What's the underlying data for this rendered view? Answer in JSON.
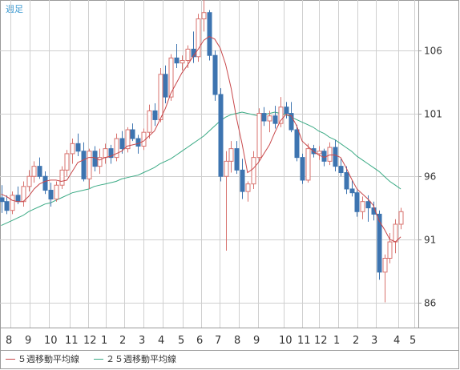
{
  "period_label": "週足",
  "legend": [
    {
      "label": "５週移動平均線",
      "color": "#c8474a"
    },
    {
      "label": "２５週移動平均線",
      "color": "#3aaa84"
    }
  ],
  "colors": {
    "up": "#d8736f",
    "down": "#3d74b0",
    "grid": "#cfcfcf",
    "axis": "#9a9a9a",
    "text": "#333333"
  },
  "chart_data": {
    "type": "candlestick",
    "y_ticks": [
      86,
      91,
      96,
      101,
      106
    ],
    "ylim": [
      84,
      110
    ],
    "x_tick_labels": [
      "8",
      "9",
      "10",
      "11",
      "12",
      "1",
      "2",
      "3",
      "4",
      "5",
      "6",
      "7",
      "8",
      "9",
      "10",
      "11",
      "12",
      "1",
      "2",
      "3",
      "4",
      "5"
    ],
    "grid": true,
    "candles": [
      [
        94.3,
        95.3,
        93.1,
        94.0
      ],
      [
        94.0,
        94.5,
        93.0,
        93.3
      ],
      [
        93.3,
        94.8,
        93.0,
        94.5
      ],
      [
        94.5,
        95.2,
        93.8,
        94.0
      ],
      [
        94.0,
        95.6,
        93.6,
        95.2
      ],
      [
        95.2,
        96.5,
        94.8,
        96.0
      ],
      [
        96.0,
        97.2,
        95.5,
        96.8
      ],
      [
        96.8,
        97.5,
        95.8,
        96.0
      ],
      [
        96.0,
        96.4,
        94.6,
        94.9
      ],
      [
        94.9,
        95.5,
        93.6,
        94.2
      ],
      [
        94.2,
        95.6,
        94.0,
        95.3
      ],
      [
        95.3,
        96.8,
        95.0,
        96.5
      ],
      [
        96.5,
        98.1,
        96.0,
        97.8
      ],
      [
        97.8,
        99.0,
        97.0,
        98.6
      ],
      [
        98.6,
        99.4,
        97.6,
        98.0
      ],
      [
        98.0,
        98.7,
        95.6,
        95.8
      ],
      [
        95.8,
        98.2,
        95.0,
        98.0
      ],
      [
        98.0,
        98.4,
        96.4,
        96.8
      ],
      [
        96.8,
        98.2,
        96.2,
        97.5
      ],
      [
        97.5,
        98.6,
        97.0,
        98.2
      ],
      [
        98.2,
        98.5,
        97.0,
        97.5
      ],
      [
        97.5,
        99.4,
        97.2,
        99.0
      ],
      [
        99.0,
        99.6,
        97.8,
        98.2
      ],
      [
        98.2,
        99.9,
        97.9,
        99.7
      ],
      [
        99.7,
        100.2,
        98.8,
        99.0
      ],
      [
        99.0,
        99.3,
        97.8,
        98.4
      ],
      [
        98.4,
        99.8,
        98.1,
        99.5
      ],
      [
        99.5,
        101.7,
        99.0,
        101.2
      ],
      [
        101.2,
        101.8,
        100.0,
        100.5
      ],
      [
        100.5,
        104.6,
        100.3,
        104.1
      ],
      [
        104.1,
        104.8,
        101.8,
        102.3
      ],
      [
        102.3,
        105.7,
        102.0,
        105.4
      ],
      [
        105.4,
        106.5,
        104.6,
        105.0
      ],
      [
        105.0,
        105.6,
        104.4,
        105.2
      ],
      [
        105.2,
        106.4,
        104.6,
        106.1
      ],
      [
        106.1,
        107.5,
        105.0,
        105.5
      ],
      [
        105.5,
        108.9,
        105.1,
        108.5
      ],
      [
        108.5,
        110.0,
        107.5,
        109.0
      ],
      [
        109.0,
        109.2,
        105.2,
        105.6
      ],
      [
        105.6,
        106.0,
        102.0,
        102.5
      ],
      [
        102.5,
        103.0,
        95.6,
        96.0
      ],
      [
        96.0,
        98.0,
        90.1,
        97.2
      ],
      [
        97.2,
        98.8,
        96.3,
        98.2
      ],
      [
        98.2,
        98.8,
        96.2,
        96.5
      ],
      [
        96.5,
        97.4,
        94.2,
        94.8
      ],
      [
        94.8,
        95.6,
        94.0,
        95.4
      ],
      [
        95.4,
        98.0,
        95.0,
        97.5
      ],
      [
        97.5,
        101.4,
        97.2,
        101.0
      ],
      [
        101.0,
        101.5,
        100.0,
        100.4
      ],
      [
        100.4,
        101.2,
        99.5,
        100.8
      ],
      [
        100.8,
        101.6,
        99.8,
        100.2
      ],
      [
        100.2,
        102.3,
        99.9,
        101.5
      ],
      [
        101.5,
        101.9,
        100.6,
        101.0
      ],
      [
        101.0,
        101.9,
        99.5,
        99.7
      ],
      [
        99.7,
        100.1,
        97.2,
        97.5
      ],
      [
        97.5,
        97.8,
        95.4,
        95.7
      ],
      [
        95.7,
        98.6,
        95.5,
        98.2
      ],
      [
        98.2,
        98.5,
        97.5,
        97.8
      ],
      [
        97.8,
        98.4,
        97.3,
        98.0
      ],
      [
        98.0,
        98.2,
        96.8,
        97.2
      ],
      [
        97.2,
        98.7,
        96.9,
        98.3
      ],
      [
        98.3,
        98.9,
        96.4,
        96.8
      ],
      [
        96.8,
        97.4,
        96.0,
        96.3
      ],
      [
        96.3,
        96.8,
        94.6,
        95.0
      ],
      [
        95.0,
        95.7,
        94.4,
        94.7
      ],
      [
        94.7,
        94.9,
        92.8,
        93.2
      ],
      [
        93.2,
        94.4,
        92.6,
        94.0
      ],
      [
        94.0,
        94.5,
        92.4,
        93.5
      ],
      [
        93.5,
        94.0,
        92.5,
        93.0
      ],
      [
        93.0,
        93.3,
        87.8,
        88.4
      ],
      [
        88.4,
        89.8,
        86.0,
        89.5
      ],
      [
        89.5,
        91.5,
        89.1,
        90.8
      ],
      [
        90.8,
        92.6,
        89.9,
        92.2
      ],
      [
        92.2,
        93.5,
        91.8,
        93.2
      ]
    ],
    "ma5": [
      94.6,
      94.4,
      94.1,
      94.0,
      94.0,
      94.4,
      95.0,
      95.4,
      95.6,
      95.7,
      95.7,
      95.6,
      95.7,
      96.4,
      97.1,
      97.3,
      97.5,
      97.5,
      97.3,
      97.5,
      97.6,
      97.8,
      98.0,
      98.4,
      98.5,
      98.6,
      98.8,
      99.2,
      99.6,
      100.5,
      101.4,
      102.6,
      103.4,
      104.2,
      104.8,
      105.5,
      106.1,
      106.8,
      107.1,
      106.9,
      106.2,
      104.9,
      103.0,
      100.6,
      98.6,
      96.3,
      96.6,
      97.1,
      97.8,
      98.5,
      99.5,
      100.4,
      100.9,
      100.8,
      100.0,
      98.8,
      98.4,
      98.0,
      97.7,
      97.5,
      97.7,
      97.7,
      97.5,
      96.7,
      95.8,
      95.0,
      94.6,
      94.2,
      93.7,
      92.5,
      91.8,
      91.0,
      90.8,
      91.2
    ],
    "ma25": [
      92.1,
      92.3,
      92.5,
      92.7,
      92.9,
      93.2,
      93.4,
      93.6,
      93.8,
      93.9,
      94.1,
      94.3,
      94.5,
      94.7,
      94.8,
      94.9,
      95.0,
      95.2,
      95.3,
      95.4,
      95.5,
      95.6,
      95.8,
      95.9,
      96.0,
      96.1,
      96.3,
      96.5,
      96.7,
      97.0,
      97.2,
      97.4,
      97.7,
      98.0,
      98.3,
      98.6,
      98.9,
      99.2,
      99.6,
      100.0,
      100.4,
      100.7,
      100.9,
      101.0,
      101.1,
      101.0,
      100.9,
      100.8,
      100.9,
      101.0,
      101.1,
      101.0,
      100.9,
      100.7,
      100.5,
      100.3,
      100.1,
      99.9,
      99.6,
      99.4,
      99.1,
      98.9,
      98.6,
      98.3,
      98.0,
      97.6,
      97.3,
      97.0,
      96.7,
      96.4,
      96.0,
      95.6,
      95.3,
      95.0
    ]
  }
}
